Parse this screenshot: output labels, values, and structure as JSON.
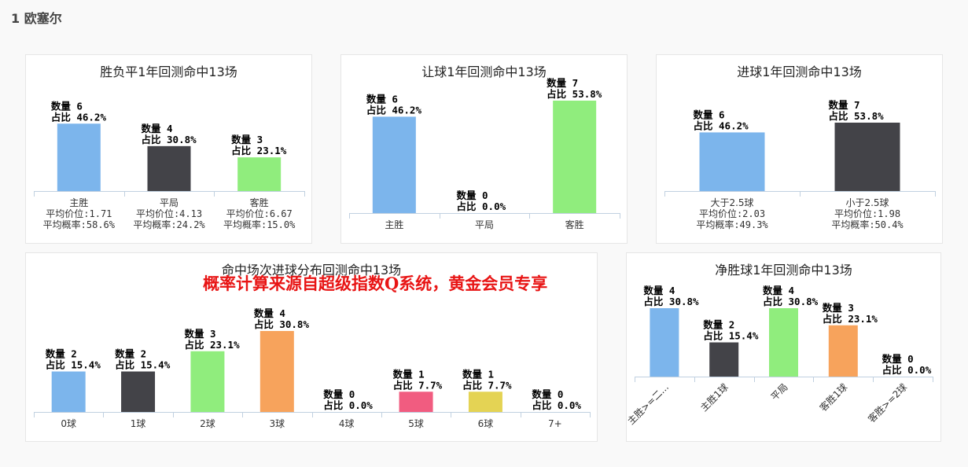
{
  "page": {
    "title": "1 欧塞尔"
  },
  "promo_text": "概率计算来源自超级指数Q系统，黄金会员专享",
  "chart_data": [
    {
      "type": "bar",
      "title": "胜负平1年回测命中13场",
      "categories": [
        "主胜",
        "平局",
        "客胜"
      ],
      "values": [
        6,
        4,
        3
      ],
      "percents": [
        "46.2%",
        "30.8%",
        "23.1%"
      ],
      "colors": [
        "#7cb5ec",
        "#434348",
        "#90ed7d"
      ],
      "sublabels": [
        [
          "平均价位:1.71",
          "平均概率:58.6%"
        ],
        [
          "平均价位:4.13",
          "平均概率:24.2%"
        ],
        [
          "平均价位:6.67",
          "平均概率:15.0%"
        ]
      ],
      "count_prefix": "数量",
      "share_prefix": "占比",
      "ylim": [
        0,
        7
      ]
    },
    {
      "type": "bar",
      "title": "让球1年回测命中13场",
      "categories": [
        "主胜",
        "平局",
        "客胜"
      ],
      "values": [
        6,
        0,
        7
      ],
      "percents": [
        "46.2%",
        "0.0%",
        "53.8%"
      ],
      "colors": [
        "#7cb5ec",
        "#434348",
        "#90ed7d"
      ],
      "count_prefix": "数量",
      "share_prefix": "占比",
      "ylim": [
        0,
        7
      ]
    },
    {
      "type": "bar",
      "title": "进球1年回测命中13场",
      "categories": [
        "大于2.5球",
        "小于2.5球"
      ],
      "values": [
        6,
        7
      ],
      "percents": [
        "46.2%",
        "53.8%"
      ],
      "colors": [
        "#7cb5ec",
        "#434348"
      ],
      "sublabels": [
        [
          "平均价位:2.03",
          "平均概率:49.3%"
        ],
        [
          "平均价位:1.98",
          "平均概率:50.4%"
        ]
      ],
      "count_prefix": "数量",
      "share_prefix": "占比",
      "ylim": [
        0,
        7
      ]
    },
    {
      "type": "bar",
      "title": "命中场次进球分布回测命中13场",
      "categories": [
        "0球",
        "1球",
        "2球",
        "3球",
        "4球",
        "5球",
        "6球",
        "7+"
      ],
      "values": [
        2,
        2,
        3,
        4,
        0,
        1,
        1,
        0
      ],
      "percents": [
        "15.4%",
        "15.4%",
        "23.1%",
        "30.8%",
        "0.0%",
        "7.7%",
        "7.7%",
        "0.0%"
      ],
      "colors": [
        "#7cb5ec",
        "#434348",
        "#90ed7d",
        "#f7a35c",
        "#8085e9",
        "#f15c80",
        "#e4d354",
        "#2b908f"
      ],
      "count_prefix": "数量",
      "share_prefix": "占比",
      "ylim": [
        0,
        4
      ]
    },
    {
      "type": "bar",
      "title": "净胜球1年回测命中13场",
      "categories": [
        "主胜>=二...",
        "主胜1球",
        "平局",
        "客胜1球",
        "客胜>=2球"
      ],
      "values": [
        4,
        2,
        4,
        3,
        0
      ],
      "percents": [
        "30.8%",
        "15.4%",
        "30.8%",
        "23.1%",
        "0.0%"
      ],
      "colors": [
        "#7cb5ec",
        "#434348",
        "#90ed7d",
        "#f7a35c",
        "#8085e9"
      ],
      "count_prefix": "数量",
      "share_prefix": "占比",
      "ylim": [
        0,
        4
      ]
    }
  ]
}
